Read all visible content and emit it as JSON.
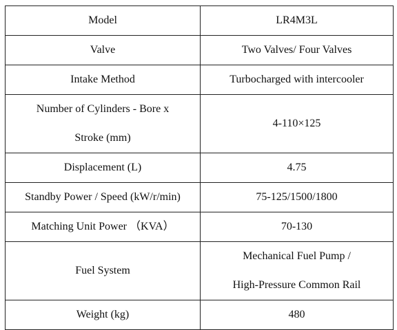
{
  "rows": [
    {
      "label": "Model",
      "value": "LR4M3L"
    },
    {
      "label": "Valve",
      "value": "Two Valves/ Four Valves"
    },
    {
      "label": "Intake Method",
      "value": "Turbocharged with intercooler"
    },
    {
      "label_lines": [
        "Number of Cylinders - Bore x",
        "Stroke (mm)"
      ],
      "value": "4-110×125"
    },
    {
      "label": "Displacement (L)",
      "value": "4.75"
    },
    {
      "label": "Standby Power / Speed (kW/r/min)",
      "value": "75-125/1500/1800"
    },
    {
      "label": "Matching Unit Power （KVA）",
      "value": "70-130"
    },
    {
      "label": "Fuel System",
      "value_lines": [
        "Mechanical Fuel Pump /",
        "High-Pressure Common Rail"
      ]
    },
    {
      "label": "Weight (kg)",
      "value": "480"
    }
  ]
}
